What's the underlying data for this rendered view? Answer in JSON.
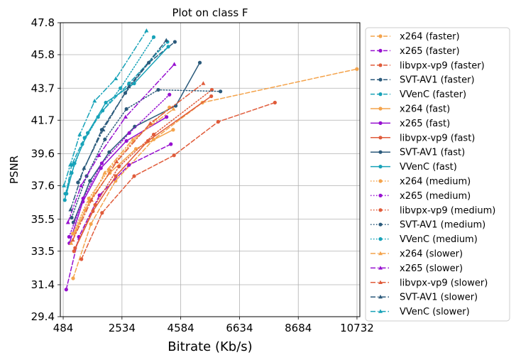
{
  "chart_data": {
    "type": "line",
    "title": "Plot on class F",
    "xlabel": "Bitrate (Kb/s)",
    "ylabel": "PSNR",
    "xlim": [
      384,
      10832
    ],
    "ylim": [
      29.4,
      47.8
    ],
    "xticks": [
      484,
      2534,
      4584,
      6634,
      8684,
      10732
    ],
    "xtick_labels": [
      "484",
      "2534",
      "4584",
      "6634",
      "8684",
      "10732"
    ],
    "yticks": [
      29.4,
      31.4,
      33.5,
      35.5,
      37.6,
      39.6,
      41.7,
      43.7,
      45.8,
      47.8
    ],
    "ytick_labels": [
      "29.4",
      "31.4",
      "33.5",
      "35.5",
      "37.6",
      "39.6",
      "41.7",
      "43.7",
      "45.8",
      "47.8"
    ],
    "grid": true,
    "legend_position": "outside-right",
    "series": [
      {
        "name": "x264 (faster)",
        "color": "#f4a34b",
        "dash": "dashed",
        "marker": "circle",
        "x": [
          830,
          1450,
          2310,
          3640,
          5340,
          10730
        ],
        "y": [
          31.8,
          35.2,
          37.9,
          40.5,
          42.8,
          44.9
        ]
      },
      {
        "name": "x265 (faster)",
        "color": "#9710d0",
        "dash": "dashed",
        "marker": "circle",
        "x": [
          590,
          1030,
          1750,
          2780,
          4240
        ],
        "y": [
          31.1,
          34.4,
          37.0,
          38.9,
          40.2
        ]
      },
      {
        "name": "libvpx-vp9 (faster)",
        "color": "#e05b3a",
        "dash": "dashed",
        "marker": "circle",
        "x": [
          1120,
          1840,
          2960,
          4350,
          5890,
          7870
        ],
        "y": [
          33.0,
          35.9,
          38.2,
          39.5,
          41.6,
          42.8
        ]
      },
      {
        "name": "SVT-AV1 (faster)",
        "color": "#2b5a7b",
        "dash": "dashed",
        "marker": "circle",
        "x": [
          1000,
          1830,
          2650,
          3470,
          4380
        ],
        "y": [
          37.8,
          41.1,
          43.4,
          45.3,
          46.6
        ]
      },
      {
        "name": "VVenC (faster)",
        "color": "#17a2b8",
        "dash": "dashed",
        "marker": "circle",
        "x": [
          540,
          780,
          1230,
          1860,
          2780,
          4120
        ],
        "y": [
          36.7,
          38.9,
          40.6,
          42.3,
          44.0,
          46.6
        ]
      },
      {
        "name": "x264 (fast)",
        "color": "#f4a34b",
        "dash": "solid",
        "marker": "circle",
        "x": [
          860,
          1400,
          2110,
          3020,
          4320
        ],
        "y": [
          34.6,
          36.6,
          38.4,
          39.9,
          41.1
        ]
      },
      {
        "name": "x265 (fast)",
        "color": "#9710d0",
        "dash": "solid",
        "marker": "circle",
        "x": [
          700,
          1170,
          1800,
          2690,
          4090
        ],
        "y": [
          34.0,
          36.6,
          38.7,
          40.4,
          41.9
        ]
      },
      {
        "name": "libvpx-vp9 (fast)",
        "color": "#e05b3a",
        "dash": "solid",
        "marker": "circle",
        "x": [
          860,
          1520,
          2320,
          3440,
          5650
        ],
        "y": [
          33.5,
          36.0,
          38.2,
          40.4,
          43.2
        ]
      },
      {
        "name": "SVT-AV1 (fast)",
        "color": "#2b5a7b",
        "dash": "solid",
        "marker": "circle",
        "x": [
          840,
          1420,
          2090,
          2980,
          4410,
          5250
        ],
        "y": [
          35.3,
          37.9,
          39.7,
          41.3,
          42.6,
          45.3
        ]
      },
      {
        "name": "VVenC (fast)",
        "color": "#17a2b8",
        "dash": "solid",
        "marker": "circle",
        "x": [
          600,
          880,
          1340,
          1970,
          2960,
          4150
        ],
        "y": [
          37.1,
          39.0,
          40.9,
          42.8,
          44.0,
          46.3
        ]
      },
      {
        "name": "x264 (medium)",
        "color": "#f4a34b",
        "dash": "dotted",
        "marker": "circle",
        "x": [
          820,
          1380,
          2080,
          2930,
          4190
        ],
        "y": [
          34.6,
          36.8,
          38.6,
          40.4,
          42.5
        ]
      },
      {
        "name": "x265 (medium)",
        "color": "#9710d0",
        "dash": "dotted",
        "marker": "circle",
        "x": [
          690,
          1180,
          1830,
          2790,
          4190
        ],
        "y": [
          34.4,
          36.8,
          39.0,
          40.9,
          43.3
        ]
      },
      {
        "name": "libvpx-vp9 (medium)",
        "color": "#e05b3a",
        "dash": "dotted",
        "marker": "circle",
        "x": [
          900,
          1600,
          2430,
          3640,
          5670
        ],
        "y": [
          33.7,
          36.4,
          38.8,
          40.8,
          43.6
        ]
      },
      {
        "name": "SVT-AV1 (medium)",
        "color": "#2b5a7b",
        "dash": "dotted",
        "marker": "circle",
        "x": [
          780,
          1300,
          1940,
          2690,
          3800,
          5970
        ],
        "y": [
          35.6,
          38.2,
          40.5,
          42.4,
          43.6,
          43.5
        ]
      },
      {
        "name": "VVenC (medium)",
        "color": "#17a2b8",
        "dash": "dotted",
        "marker": "circle",
        "x": [
          560,
          780,
          1150,
          1700,
          2480,
          3640
        ],
        "y": [
          37.1,
          38.4,
          40.2,
          41.9,
          43.7,
          46.9
        ]
      },
      {
        "name": "x264 (slower)",
        "color": "#f4a34b",
        "dash": "dashdot",
        "marker": "triangle",
        "x": [
          760,
          1260,
          1930,
          2910,
          4330
        ],
        "y": [
          34.0,
          36.1,
          38.4,
          40.5,
          42.4
        ]
      },
      {
        "name": "x265 (slower)",
        "color": "#9710d0",
        "dash": "dashdot",
        "marker": "triangle",
        "x": [
          650,
          1110,
          1730,
          2660,
          4360
        ],
        "y": [
          35.3,
          37.6,
          39.5,
          41.9,
          45.2
        ]
      },
      {
        "name": "libvpx-vp9 (slower)",
        "color": "#e05b3a",
        "dash": "dashdot",
        "marker": "triangle",
        "x": [
          820,
          1470,
          2350,
          3520,
          5370
        ],
        "y": [
          34.2,
          36.7,
          39.1,
          41.5,
          44.0
        ]
      },
      {
        "name": "SVT-AV1 (slower)",
        "color": "#2b5a7b",
        "dash": "dashdot",
        "marker": "triangle",
        "x": [
          740,
          1210,
          1880,
          2770,
          4080
        ],
        "y": [
          36.1,
          38.7,
          41.1,
          43.8,
          46.7
        ]
      },
      {
        "name": "VVenC (slower)",
        "color": "#17a2b8",
        "dash": "dashdot",
        "marker": "triangle",
        "x": [
          510,
          730,
          1060,
          1580,
          2320,
          3390
        ],
        "y": [
          37.6,
          38.9,
          40.8,
          42.9,
          44.3,
          47.3
        ]
      }
    ]
  }
}
